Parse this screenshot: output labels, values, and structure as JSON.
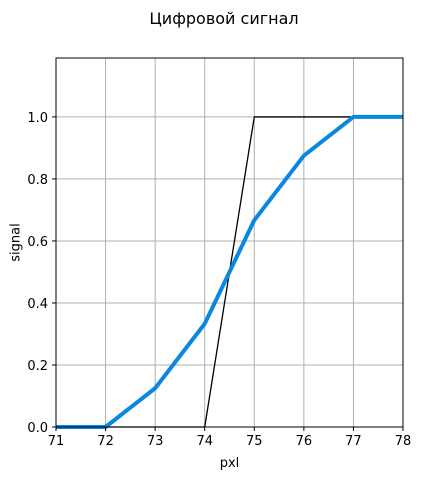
{
  "chart_data": {
    "type": "line",
    "title": "Цифровой сигнал",
    "xlabel": "pxl",
    "ylabel": "signal",
    "xlim": [
      71,
      78
    ],
    "ylim": [
      0,
      1.19
    ],
    "grid": true,
    "x_ticks": [
      71,
      72,
      73,
      74,
      75,
      76,
      77,
      78
    ],
    "x_tick_labels": [
      "71",
      "72",
      "73",
      "74",
      "75",
      "76",
      "77",
      "78"
    ],
    "y_ticks": [
      0.0,
      0.2,
      0.4,
      0.6,
      0.8,
      1.0
    ],
    "y_tick_labels": [
      "0.0",
      "0.2",
      "0.4",
      "0.6",
      "0.8",
      "1.0"
    ],
    "series": [
      {
        "color": "#000000",
        "x": [
          71,
          72,
          73,
          74,
          75,
          76,
          77,
          78
        ],
        "y": [
          0,
          0,
          0,
          0,
          1,
          1,
          1,
          1
        ]
      },
      {
        "color": "#0a87e0",
        "x": [
          71,
          72,
          73,
          74,
          75,
          76,
          77,
          78
        ],
        "y": [
          0,
          0,
          0.125,
          0.333,
          0.667,
          0.875,
          1,
          1
        ]
      }
    ]
  }
}
